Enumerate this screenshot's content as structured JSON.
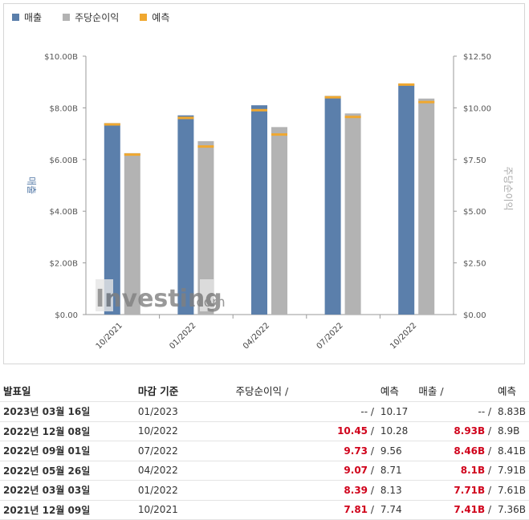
{
  "legend": {
    "revenue": "매출",
    "eps": "주당순이익",
    "forecast": "예측"
  },
  "colors": {
    "revenue": "#5b7fab",
    "eps": "#b3b3b3",
    "forecast": "#f0a830"
  },
  "watermark": {
    "brand": "Investing",
    "suffix": ".com"
  },
  "chart_data": {
    "type": "bar",
    "categories": [
      "10/2021",
      "01/2022",
      "04/2022",
      "07/2022",
      "10/2022"
    ],
    "series": [
      {
        "name": "매출",
        "axis": "left",
        "values": [
          7.41,
          7.71,
          8.1,
          8.46,
          8.93
        ],
        "forecast": [
          7.36,
          7.61,
          7.91,
          8.41,
          8.9
        ]
      },
      {
        "name": "주당순이익",
        "axis": "right",
        "values": [
          7.81,
          8.39,
          9.07,
          9.73,
          10.45
        ],
        "forecast": [
          7.74,
          8.13,
          8.71,
          9.56,
          10.28
        ]
      }
    ],
    "ylabel_left": "매출",
    "ylabel_right": "주당순이익",
    "ylim_left": [
      0,
      10
    ],
    "ylim_right": [
      0,
      12.5
    ],
    "yticks_left": [
      "$0.00",
      "$2.00B",
      "$4.00B",
      "$6.00B",
      "$8.00B",
      "$10.00B"
    ],
    "yticks_right": [
      "$0.00",
      "$2.50",
      "$5.00",
      "$7.50",
      "$10.00",
      "$12.50"
    ],
    "grid": false,
    "legend_position": "top-left"
  },
  "table": {
    "headers": {
      "date": "발표일",
      "period": "마감 기준",
      "eps": "주당순이익",
      "eps_fc": "예측",
      "rev": "매출",
      "rev_fc": "예측",
      "slash": "/"
    },
    "rows": [
      {
        "date": "2023년 03월 16일",
        "period": "01/2023",
        "eps": "--",
        "eps_fc": "10.17",
        "rev": "--",
        "rev_fc": "8.83B"
      },
      {
        "date": "2022년 12월 08일",
        "period": "10/2022",
        "eps": "10.45",
        "eps_fc": "10.28",
        "rev": "8.93B",
        "rev_fc": "8.9B"
      },
      {
        "date": "2022년 09월 01일",
        "period": "07/2022",
        "eps": "9.73",
        "eps_fc": "9.56",
        "rev": "8.46B",
        "rev_fc": "8.41B"
      },
      {
        "date": "2022년 05월 26일",
        "period": "04/2022",
        "eps": "9.07",
        "eps_fc": "8.71",
        "rev": "8.1B",
        "rev_fc": "7.91B"
      },
      {
        "date": "2022년 03월 03일",
        "period": "01/2022",
        "eps": "8.39",
        "eps_fc": "8.13",
        "rev": "7.71B",
        "rev_fc": "7.61B"
      },
      {
        "date": "2021년 12월 09일",
        "period": "10/2021",
        "eps": "7.81",
        "eps_fc": "7.74",
        "rev": "7.41B",
        "rev_fc": "7.36B"
      }
    ]
  }
}
